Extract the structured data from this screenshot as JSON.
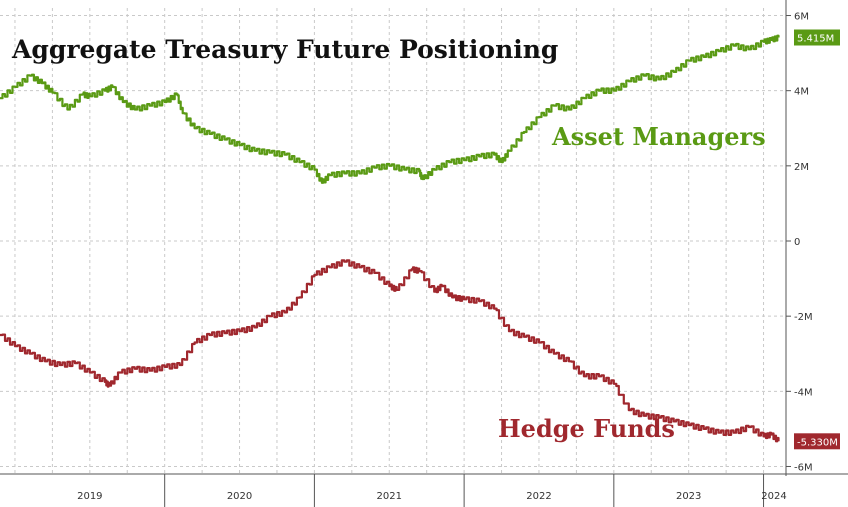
{
  "chart_data": {
    "type": "line",
    "title": "Aggregate Treasury Future Positioning",
    "xlabel": "",
    "ylabel": "",
    "xlim": [
      2018.9,
      2024.15
    ],
    "ylim": [
      -6.2,
      6.2
    ],
    "y_unit": "M",
    "yticks": [
      {
        "value": 6,
        "label": "6M"
      },
      {
        "value": 4,
        "label": "4M"
      },
      {
        "value": 2,
        "label": "2M"
      },
      {
        "value": 0,
        "label": "0"
      },
      {
        "value": -2,
        "label": "-2M"
      },
      {
        "value": -4,
        "label": "-4M"
      },
      {
        "value": -6,
        "label": "-6M"
      }
    ],
    "xticks": [
      {
        "label": "2019",
        "position": 2019.5
      },
      {
        "label": "2020",
        "position": 2020.5
      },
      {
        "label": "2021",
        "position": 2021.5
      },
      {
        "label": "2022",
        "position": 2022.5
      },
      {
        "label": "2023",
        "position": 2023.5
      },
      {
        "label": "2024",
        "position": 2024.07
      }
    ],
    "year_boundaries": [
      2020,
      2021,
      2022,
      2023,
      2024
    ],
    "grid": true,
    "series": [
      {
        "name": "Asset Managers",
        "color": "#5a9a14",
        "last_value_label": "5.415M",
        "x": [
          2018.9,
          2019.0,
          2019.1,
          2019.18,
          2019.25,
          2019.35,
          2019.45,
          2019.5,
          2019.6,
          2019.65,
          2019.72,
          2019.8,
          2019.9,
          2020.0,
          2020.08,
          2020.12,
          2020.2,
          2020.3,
          2020.4,
          2020.5,
          2020.6,
          2020.7,
          2020.8,
          2020.9,
          2021.0,
          2021.05,
          2021.1,
          2021.2,
          2021.3,
          2021.4,
          2021.5,
          2021.6,
          2021.7,
          2021.72,
          2021.8,
          2021.9,
          2022.0,
          2022.1,
          2022.2,
          2022.25,
          2022.3,
          2022.4,
          2022.5,
          2022.6,
          2022.7,
          2022.8,
          2022.9,
          2023.0,
          2023.1,
          2023.2,
          2023.3,
          2023.4,
          2023.5,
          2023.6,
          2023.7,
          2023.8,
          2023.9,
          2024.0,
          2024.05,
          2024.1
        ],
        "values": [
          3.8,
          4.1,
          4.4,
          4.2,
          3.95,
          3.5,
          3.9,
          3.85,
          4.0,
          4.1,
          3.7,
          3.5,
          3.6,
          3.7,
          3.9,
          3.4,
          3.0,
          2.85,
          2.7,
          2.55,
          2.4,
          2.35,
          2.3,
          2.1,
          1.9,
          1.55,
          1.75,
          1.8,
          1.8,
          1.95,
          2.0,
          1.9,
          1.85,
          1.65,
          1.9,
          2.1,
          2.15,
          2.25,
          2.3,
          2.1,
          2.4,
          2.9,
          3.3,
          3.6,
          3.5,
          3.8,
          4.0,
          4.0,
          4.25,
          4.4,
          4.3,
          4.5,
          4.8,
          4.9,
          5.05,
          5.2,
          5.1,
          5.3,
          5.35,
          5.415
        ]
      },
      {
        "name": "Hedge Funds",
        "color": "#a0282e",
        "last_value_label": "-5.330M",
        "x": [
          2018.9,
          2019.0,
          2019.1,
          2019.2,
          2019.3,
          2019.4,
          2019.5,
          2019.6,
          2019.63,
          2019.7,
          2019.8,
          2019.9,
          2020.0,
          2020.1,
          2020.2,
          2020.3,
          2020.4,
          2020.5,
          2020.6,
          2020.7,
          2020.8,
          2020.9,
          2021.0,
          2021.1,
          2021.2,
          2021.3,
          2021.4,
          2021.5,
          2021.55,
          2021.65,
          2021.7,
          2021.8,
          2021.85,
          2021.92,
          2022.0,
          2022.1,
          2022.2,
          2022.3,
          2022.4,
          2022.5,
          2022.6,
          2022.7,
          2022.8,
          2022.9,
          2023.0,
          2023.1,
          2023.2,
          2023.3,
          2023.4,
          2023.5,
          2023.6,
          2023.7,
          2023.8,
          2023.9,
          2024.0,
          2024.05,
          2024.1
        ],
        "values": [
          -2.5,
          -2.8,
          -3.0,
          -3.2,
          -3.3,
          -3.25,
          -3.5,
          -3.75,
          -3.85,
          -3.5,
          -3.4,
          -3.45,
          -3.35,
          -3.3,
          -2.7,
          -2.5,
          -2.45,
          -2.4,
          -2.3,
          -2.0,
          -1.9,
          -1.5,
          -0.9,
          -0.7,
          -0.55,
          -0.7,
          -0.85,
          -1.2,
          -1.3,
          -0.75,
          -0.8,
          -1.35,
          -1.2,
          -1.5,
          -1.55,
          -1.6,
          -1.8,
          -2.4,
          -2.55,
          -2.7,
          -3.0,
          -3.2,
          -3.6,
          -3.6,
          -3.8,
          -4.5,
          -4.65,
          -4.7,
          -4.8,
          -4.9,
          -5.0,
          -5.1,
          -5.1,
          -4.95,
          -5.2,
          -5.15,
          -5.33
        ]
      }
    ],
    "series_text_labels": [
      "Asset Managers",
      "Hedge Funds"
    ]
  }
}
